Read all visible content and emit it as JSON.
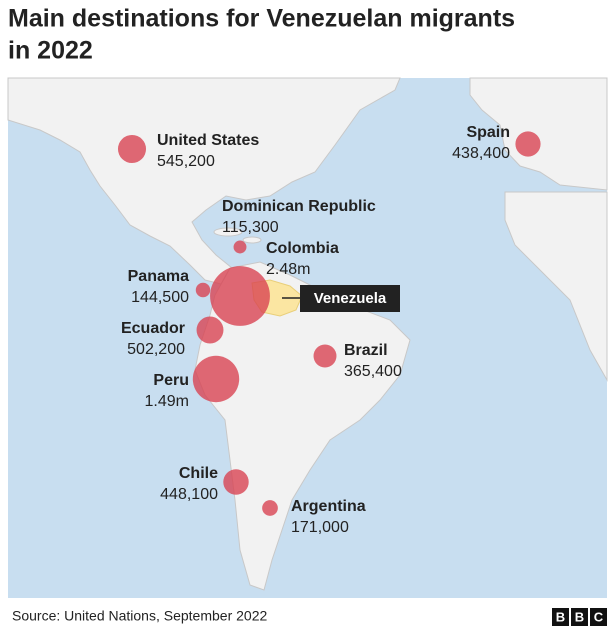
{
  "title": [
    "Main destinations for Venezuelan migrants",
    "in 2022"
  ],
  "origin": {
    "name": "Venezuela"
  },
  "destinations": [
    {
      "name": "United States",
      "value": 545200,
      "value_label": "545,200"
    },
    {
      "name": "Spain",
      "value": 438400,
      "value_label": "438,400"
    },
    {
      "name": "Dominican Republic",
      "value": 115300,
      "value_label": "115,300"
    },
    {
      "name": "Colombia",
      "value": 2480000,
      "value_label": "2.48m"
    },
    {
      "name": "Panama",
      "value": 144500,
      "value_label": "144,500"
    },
    {
      "name": "Ecuador",
      "value": 502200,
      "value_label": "502,200"
    },
    {
      "name": "Peru",
      "value": 1490000,
      "value_label": "1.49m"
    },
    {
      "name": "Brazil",
      "value": 365400,
      "value_label": "365,400"
    },
    {
      "name": "Chile",
      "value": 448100,
      "value_label": "448,100"
    },
    {
      "name": "Argentina",
      "value": 171000,
      "value_label": "171,000"
    }
  ],
  "source": "Source: United Nations, September 2022",
  "logo": [
    "B",
    "B",
    "C"
  ]
}
